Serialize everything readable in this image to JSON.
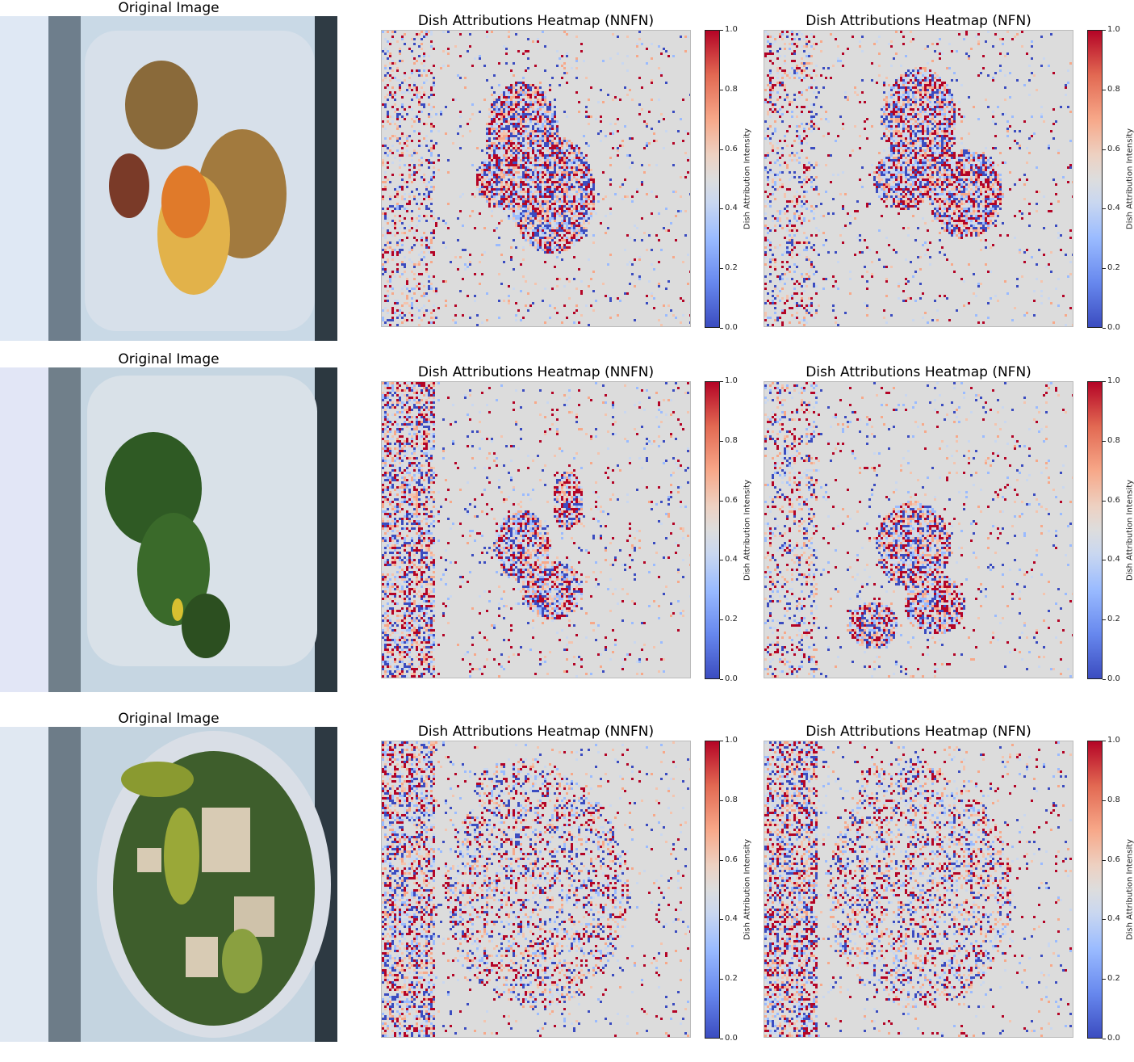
{
  "rows": [
    {
      "photo_title": "Original Image",
      "photo_icon": "food-plate-image",
      "heatmaps": [
        {
          "title": "Dish Attributions Heatmap (NNFN)"
        },
        {
          "title": "Dish Attributions Heatmap (NFN)"
        }
      ]
    },
    {
      "photo_title": "Original Image",
      "photo_icon": "salad-plate-image",
      "heatmaps": [
        {
          "title": "Dish Attributions Heatmap (NNFN)"
        },
        {
          "title": "Dish Attributions Heatmap (NFN)"
        }
      ]
    },
    {
      "photo_title": "Original Image",
      "photo_icon": "salad-bowl-image",
      "heatmaps": [
        {
          "title": "Dish Attributions Heatmap (NNFN)"
        },
        {
          "title": "Dish Attributions Heatmap (NFN)"
        }
      ]
    }
  ],
  "colorbar": {
    "label": "Dish Attribution Intensity",
    "ticks": [
      "0.0",
      "0.2",
      "0.4",
      "0.6",
      "0.8",
      "1.0"
    ],
    "range": [
      0.0,
      1.0
    ],
    "colormap": "coolwarm"
  },
  "chart_data": [
    {
      "type": "heatmap",
      "title": "Dish Attributions Heatmap (NNFN)",
      "colorbar_label": "Dish Attribution Intensity",
      "zlim": [
        0.0,
        1.0
      ],
      "row": 1
    },
    {
      "type": "heatmap",
      "title": "Dish Attributions Heatmap (NFN)",
      "colorbar_label": "Dish Attribution Intensity",
      "zlim": [
        0.0,
        1.0
      ],
      "row": 1
    },
    {
      "type": "heatmap",
      "title": "Dish Attributions Heatmap (NNFN)",
      "colorbar_label": "Dish Attribution Intensity",
      "zlim": [
        0.0,
        1.0
      ],
      "row": 2
    },
    {
      "type": "heatmap",
      "title": "Dish Attributions Heatmap (NFN)",
      "colorbar_label": "Dish Attribution Intensity",
      "zlim": [
        0.0,
        1.0
      ],
      "row": 2
    },
    {
      "type": "heatmap",
      "title": "Dish Attributions Heatmap (NNFN)",
      "colorbar_label": "Dish Attribution Intensity",
      "zlim": [
        0.0,
        1.0
      ],
      "row": 3
    },
    {
      "type": "heatmap",
      "title": "Dish Attributions Heatmap (NFN)",
      "colorbar_label": "Dish Attribution Intensity",
      "zlim": [
        0.0,
        1.0
      ],
      "row": 3
    }
  ],
  "colors": {
    "cool": "#3b4cc0",
    "neutral": "#dddddd",
    "warm": "#b40426"
  }
}
